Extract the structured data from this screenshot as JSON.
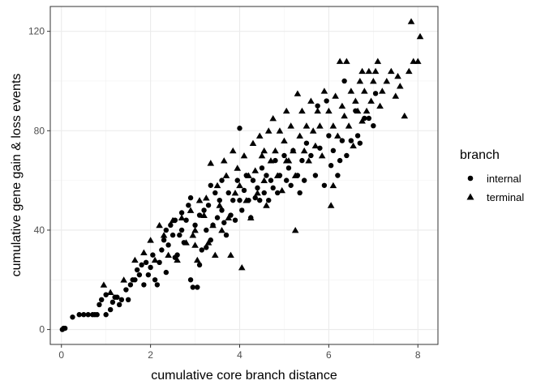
{
  "chart_data": {
    "type": "scatter",
    "title": "",
    "xlabel": "cumulative core branch distance",
    "ylabel": "cumulative gene gain & loss events",
    "xlim": [
      -0.25,
      8.45
    ],
    "ylim": [
      -6,
      130
    ],
    "x_ticks": [
      0,
      2,
      4,
      6,
      8
    ],
    "y_ticks": [
      0,
      40,
      80,
      120
    ],
    "grid": true,
    "legend": {
      "title": "branch",
      "placement": "right"
    },
    "series": [
      {
        "name": "internal",
        "marker": "circle",
        "points": [
          [
            0.02,
            0
          ],
          [
            0.05,
            0.5
          ],
          [
            0.08,
            0.5
          ],
          [
            0.25,
            5
          ],
          [
            0.4,
            6
          ],
          [
            0.5,
            6
          ],
          [
            0.6,
            6
          ],
          [
            0.7,
            6
          ],
          [
            0.8,
            6
          ],
          [
            0.85,
            10
          ],
          [
            0.9,
            12
          ],
          [
            1.0,
            6
          ],
          [
            1.0,
            14
          ],
          [
            1.1,
            8
          ],
          [
            1.15,
            11
          ],
          [
            1.2,
            13
          ],
          [
            1.3,
            10
          ],
          [
            1.35,
            12
          ],
          [
            1.45,
            16
          ],
          [
            1.5,
            12
          ],
          [
            1.55,
            18
          ],
          [
            1.6,
            20
          ],
          [
            1.7,
            24
          ],
          [
            1.75,
            22
          ],
          [
            1.8,
            26
          ],
          [
            1.85,
            18
          ],
          [
            1.9,
            27
          ],
          [
            1.95,
            22
          ],
          [
            2.0,
            25
          ],
          [
            2.05,
            30
          ],
          [
            2.1,
            20
          ],
          [
            2.15,
            18
          ],
          [
            2.2,
            27
          ],
          [
            2.25,
            32
          ],
          [
            2.3,
            36
          ],
          [
            2.35,
            23
          ],
          [
            2.4,
            34
          ],
          [
            2.45,
            42
          ],
          [
            2.5,
            38
          ],
          [
            2.55,
            44
          ],
          [
            2.6,
            30
          ],
          [
            2.65,
            38
          ],
          [
            2.7,
            40
          ],
          [
            2.75,
            35
          ],
          [
            2.8,
            44
          ],
          [
            2.85,
            50
          ],
          [
            2.9,
            20
          ],
          [
            2.95,
            17
          ],
          [
            3.0,
            42
          ],
          [
            3.05,
            17
          ],
          [
            3.1,
            46
          ],
          [
            3.15,
            32
          ],
          [
            3.2,
            48
          ],
          [
            3.25,
            40
          ],
          [
            3.3,
            50
          ],
          [
            3.35,
            36
          ],
          [
            3.4,
            42
          ],
          [
            3.45,
            55
          ],
          [
            3.5,
            45
          ],
          [
            3.55,
            52
          ],
          [
            3.6,
            48
          ],
          [
            3.65,
            43
          ],
          [
            3.7,
            38
          ],
          [
            3.75,
            55
          ],
          [
            3.8,
            46
          ],
          [
            3.85,
            52
          ],
          [
            3.9,
            44
          ],
          [
            3.95,
            60
          ],
          [
            4.0,
            52
          ],
          [
            4.05,
            48
          ],
          [
            4.1,
            56
          ],
          [
            4.15,
            62
          ],
          [
            4.2,
            52
          ],
          [
            4.25,
            45
          ],
          [
            4.3,
            60
          ],
          [
            4.35,
            53
          ],
          [
            4.4,
            57
          ],
          [
            4.5,
            65
          ],
          [
            4.55,
            55
          ],
          [
            4.6,
            62
          ],
          [
            4.65,
            52
          ],
          [
            4.7,
            60
          ],
          [
            4.75,
            57
          ],
          [
            4.8,
            68
          ],
          [
            4.85,
            55
          ],
          [
            4.9,
            62
          ],
          [
            5.0,
            70
          ],
          [
            5.05,
            60
          ],
          [
            5.1,
            65
          ],
          [
            5.15,
            58
          ],
          [
            5.2,
            72
          ],
          [
            5.3,
            62
          ],
          [
            5.35,
            55
          ],
          [
            5.4,
            68
          ],
          [
            5.45,
            60
          ],
          [
            5.5,
            75
          ],
          [
            5.6,
            70
          ],
          [
            5.7,
            62
          ],
          [
            5.8,
            73
          ],
          [
            5.9,
            58
          ],
          [
            6.0,
            78
          ],
          [
            6.05,
            66
          ],
          [
            6.1,
            72
          ],
          [
            6.2,
            62
          ],
          [
            6.25,
            68
          ],
          [
            6.3,
            76
          ],
          [
            6.4,
            70
          ],
          [
            6.5,
            76
          ],
          [
            6.6,
            88
          ],
          [
            6.65,
            78
          ],
          [
            6.7,
            75
          ],
          [
            6.8,
            85
          ],
          [
            6.9,
            85
          ],
          [
            7.0,
            82
          ],
          [
            7.05,
            95
          ],
          [
            2.9,
            53
          ],
          [
            3.35,
            58
          ],
          [
            4.0,
            81
          ],
          [
            3.6,
            60
          ],
          [
            2.7,
            47
          ],
          [
            2.35,
            40
          ],
          [
            3.1,
            26
          ],
          [
            4.45,
            52
          ],
          [
            5.75,
            90
          ],
          [
            5.95,
            92
          ],
          [
            6.35,
            100
          ],
          [
            0.75,
            6
          ],
          [
            1.25,
            13
          ],
          [
            1.65,
            20
          ],
          [
            2.55,
            29
          ],
          [
            3.25,
            33
          ]
        ]
      },
      {
        "name": "terminal",
        "marker": "triangle",
        "points": [
          [
            0.95,
            18
          ],
          [
            1.1,
            15
          ],
          [
            1.4,
            20
          ],
          [
            1.65,
            28
          ],
          [
            1.85,
            31
          ],
          [
            2.0,
            36
          ],
          [
            2.1,
            28
          ],
          [
            2.2,
            42
          ],
          [
            2.3,
            38
          ],
          [
            2.4,
            30
          ],
          [
            2.5,
            44
          ],
          [
            2.6,
            28
          ],
          [
            2.7,
            45
          ],
          [
            2.8,
            35
          ],
          [
            2.9,
            48
          ],
          [
            3.0,
            40
          ],
          [
            3.05,
            28
          ],
          [
            3.1,
            52
          ],
          [
            3.2,
            46
          ],
          [
            3.25,
            53
          ],
          [
            3.3,
            35
          ],
          [
            3.35,
            67
          ],
          [
            3.4,
            42
          ],
          [
            3.5,
            58
          ],
          [
            3.55,
            50
          ],
          [
            3.6,
            40
          ],
          [
            3.65,
            68
          ],
          [
            3.7,
            62
          ],
          [
            3.75,
            45
          ],
          [
            3.8,
            30
          ],
          [
            3.85,
            72
          ],
          [
            3.9,
            55
          ],
          [
            3.95,
            65
          ],
          [
            4.0,
            58
          ],
          [
            4.05,
            25
          ],
          [
            4.1,
            70
          ],
          [
            4.15,
            52
          ],
          [
            4.2,
            62
          ],
          [
            4.25,
            45
          ],
          [
            4.3,
            75
          ],
          [
            4.35,
            64
          ],
          [
            4.4,
            55
          ],
          [
            4.45,
            78
          ],
          [
            4.5,
            70
          ],
          [
            4.55,
            60
          ],
          [
            4.6,
            50
          ],
          [
            4.65,
            80
          ],
          [
            4.7,
            68
          ],
          [
            4.75,
            85
          ],
          [
            4.8,
            72
          ],
          [
            4.85,
            62
          ],
          [
            4.9,
            80
          ],
          [
            4.95,
            56
          ],
          [
            5.0,
            76
          ],
          [
            5.05,
            88
          ],
          [
            5.1,
            68
          ],
          [
            5.15,
            82
          ],
          [
            5.2,
            72
          ],
          [
            5.25,
            62
          ],
          [
            5.3,
            95
          ],
          [
            5.35,
            78
          ],
          [
            5.4,
            88
          ],
          [
            5.45,
            72
          ],
          [
            5.5,
            82
          ],
          [
            5.55,
            68
          ],
          [
            5.6,
            92
          ],
          [
            5.65,
            80
          ],
          [
            5.7,
            74
          ],
          [
            5.75,
            88
          ],
          [
            5.8,
            82
          ],
          [
            5.85,
            70
          ],
          [
            5.9,
            96
          ],
          [
            6.0,
            88
          ],
          [
            6.05,
            50
          ],
          [
            6.1,
            82
          ],
          [
            6.15,
            94
          ],
          [
            6.2,
            78
          ],
          [
            6.25,
            108
          ],
          [
            6.3,
            90
          ],
          [
            6.35,
            86
          ],
          [
            6.4,
            108
          ],
          [
            6.45,
            82
          ],
          [
            6.5,
            96
          ],
          [
            6.55,
            74
          ],
          [
            6.6,
            92
          ],
          [
            6.65,
            88
          ],
          [
            6.7,
            100
          ],
          [
            6.75,
            84
          ],
          [
            6.8,
            96
          ],
          [
            6.85,
            88
          ],
          [
            6.9,
            104
          ],
          [
            6.95,
            92
          ],
          [
            7.0,
            100
          ],
          [
            7.05,
            104
          ],
          [
            7.1,
            108
          ],
          [
            7.15,
            90
          ],
          [
            7.2,
            96
          ],
          [
            7.3,
            100
          ],
          [
            7.4,
            104
          ],
          [
            7.5,
            94
          ],
          [
            7.55,
            102
          ],
          [
            7.6,
            98
          ],
          [
            7.7,
            86
          ],
          [
            7.8,
            104
          ],
          [
            7.85,
            124
          ],
          [
            7.9,
            108
          ],
          [
            8.0,
            108
          ],
          [
            8.05,
            118
          ],
          [
            5.25,
            40
          ],
          [
            3.45,
            30
          ],
          [
            3.0,
            34
          ],
          [
            2.95,
            38
          ],
          [
            4.55,
            72
          ],
          [
            5.05,
            68
          ],
          [
            6.1,
            58
          ],
          [
            6.75,
            104
          ]
        ]
      }
    ]
  }
}
